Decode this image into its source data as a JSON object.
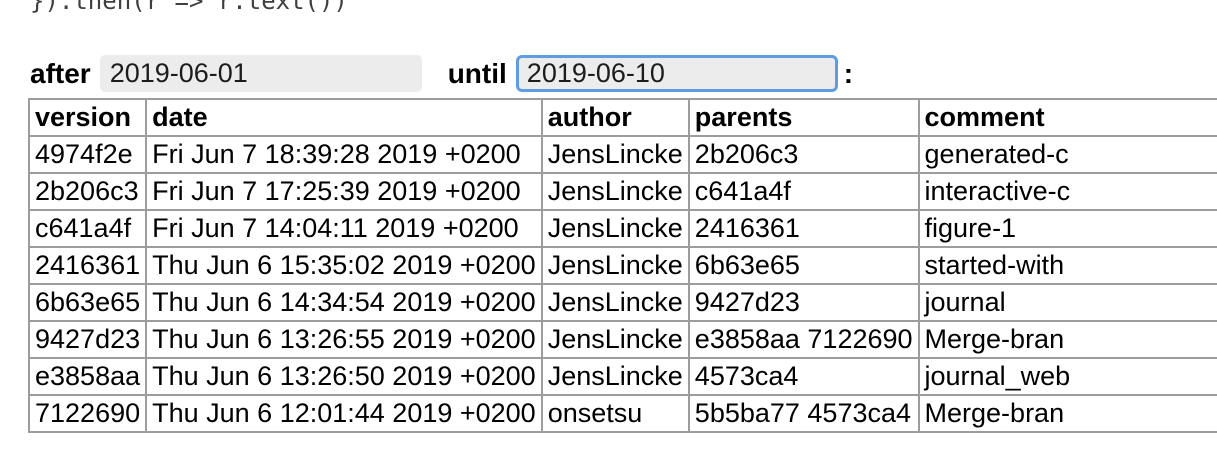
{
  "code_line": "}).then(r => r.text())",
  "filters": {
    "after_label": "after",
    "after_value": "2019-06-01",
    "until_label": "until",
    "until_value": "2019-06-10",
    "separator": ":"
  },
  "table": {
    "columns": [
      "version",
      "date",
      "author",
      "parents",
      "comment"
    ],
    "rows": [
      [
        "4974f2e",
        "Fri Jun 7 18:39:28 2019 +0200",
        "JensLincke",
        "2b206c3",
        "generated-c"
      ],
      [
        "2b206c3",
        "Fri Jun 7 17:25:39 2019 +0200",
        "JensLincke",
        "c641a4f",
        "interactive-c"
      ],
      [
        "c641a4f",
        "Fri Jun 7 14:04:11 2019 +0200",
        "JensLincke",
        "2416361",
        "figure-1"
      ],
      [
        "2416361",
        "Thu Jun 6 15:35:02 2019 +0200",
        "JensLincke",
        "6b63e65",
        "started-with"
      ],
      [
        "6b63e65",
        "Thu Jun 6 14:34:54 2019 +0200",
        "JensLincke",
        "9427d23",
        "journal"
      ],
      [
        "9427d23",
        "Thu Jun 6 13:26:55 2019 +0200",
        "JensLincke",
        "e3858aa 7122690",
        "Merge-bran"
      ],
      [
        "e3858aa",
        "Thu Jun 6 13:26:50 2019 +0200",
        "JensLincke",
        "4573ca4",
        "journal_web"
      ],
      [
        "7122690",
        "Thu Jun 6 12:01:44 2019 +0200",
        "onsetsu",
        "5b5ba77 4573ca4",
        "Merge-bran"
      ]
    ]
  },
  "colors": {
    "input_background": "#ececec",
    "focus_border": "#5f9ce0",
    "table_border": "#9c9c9c",
    "code_text": "#3f3f3f"
  }
}
